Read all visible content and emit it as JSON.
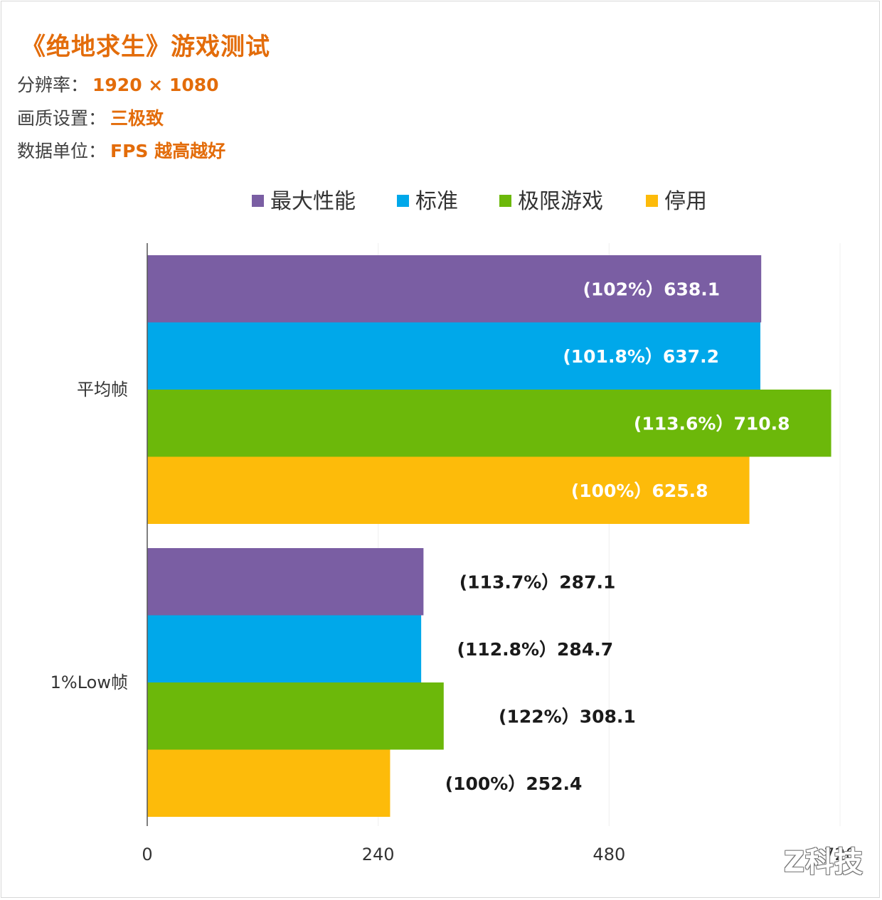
{
  "header": {
    "title": "《绝地求生》游戏测试",
    "resolution_label": "分辨率：",
    "resolution_value": "1920 × 1080",
    "quality_label": "画质设置：",
    "quality_value": "三极致",
    "unit_label": "数据单位：",
    "unit_value": "FPS 越高越好"
  },
  "watermark": "Z科技",
  "chart_data": {
    "type": "bar",
    "orientation": "horizontal",
    "categories": [
      "平均帧",
      "1%Low帧"
    ],
    "series": [
      {
        "name": "最大性能",
        "color": "#7a5ea3",
        "values": [
          638.1,
          287.1
        ],
        "labels": [
          "(102%）638.1",
          "(113.7%）287.1"
        ]
      },
      {
        "name": "标准",
        "color": "#00a8ea",
        "values": [
          637.2,
          284.7
        ],
        "labels": [
          "(101.8%）637.2",
          "(112.8%）284.7"
        ]
      },
      {
        "name": "极限游戏",
        "color": "#6cb80a",
        "values": [
          710.8,
          308.1
        ],
        "labels": [
          "(113.6%）710.8",
          "(122%）308.1"
        ]
      },
      {
        "name": "停用",
        "color": "#fdbb0a",
        "values": [
          625.8,
          252.4
        ],
        "labels": [
          "(100%）625.8",
          "(100%）252.4"
        ]
      }
    ],
    "xlim": [
      0,
      720
    ],
    "xticks": [
      "0",
      "240",
      "480",
      "720"
    ],
    "legend_position": "top",
    "grid": false
  }
}
